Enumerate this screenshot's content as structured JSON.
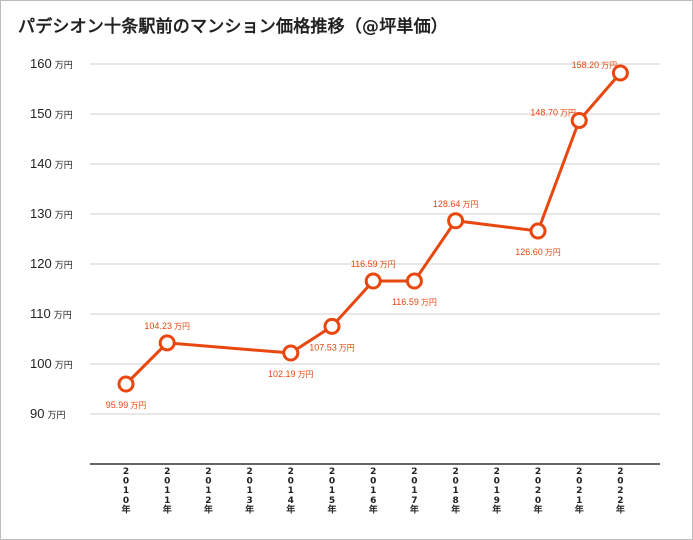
{
  "title": "パデシオン十条駅前のマンション価格推移（@坪単価）",
  "colors": {
    "series": "#e8470f",
    "grid": "#d0d0d0",
    "axis": "#333333"
  },
  "chart_data": {
    "type": "line",
    "title": "パデシオン十条駅前のマンション価格推移（@坪単価）",
    "xlabel": "",
    "ylabel": "",
    "y_unit": "万円",
    "ylim": [
      80,
      160
    ],
    "yticks": [
      90,
      100,
      110,
      120,
      130,
      140,
      150,
      160
    ],
    "grid": true,
    "categories": [
      "2010年",
      "2011年",
      "2012年",
      "2013年",
      "2014年",
      "2015年",
      "2016年",
      "2017年",
      "2018年",
      "2019年",
      "2020年",
      "2021年",
      "2022年"
    ],
    "series": [
      {
        "values": [
          95.99,
          104.23,
          null,
          null,
          102.19,
          107.53,
          116.59,
          116.59,
          128.64,
          null,
          126.6,
          148.7,
          158.2
        ],
        "labels": [
          "95.99",
          "104.23",
          "",
          "",
          "102.19",
          "107.53",
          "116.59",
          "116.59",
          "128.64",
          "",
          "126.60",
          "148.70",
          "158.20"
        ],
        "label_positions": [
          "below",
          "above",
          "",
          "",
          "below",
          "below",
          "above",
          "below",
          "above",
          "",
          "below",
          "left",
          "left"
        ]
      }
    ]
  }
}
